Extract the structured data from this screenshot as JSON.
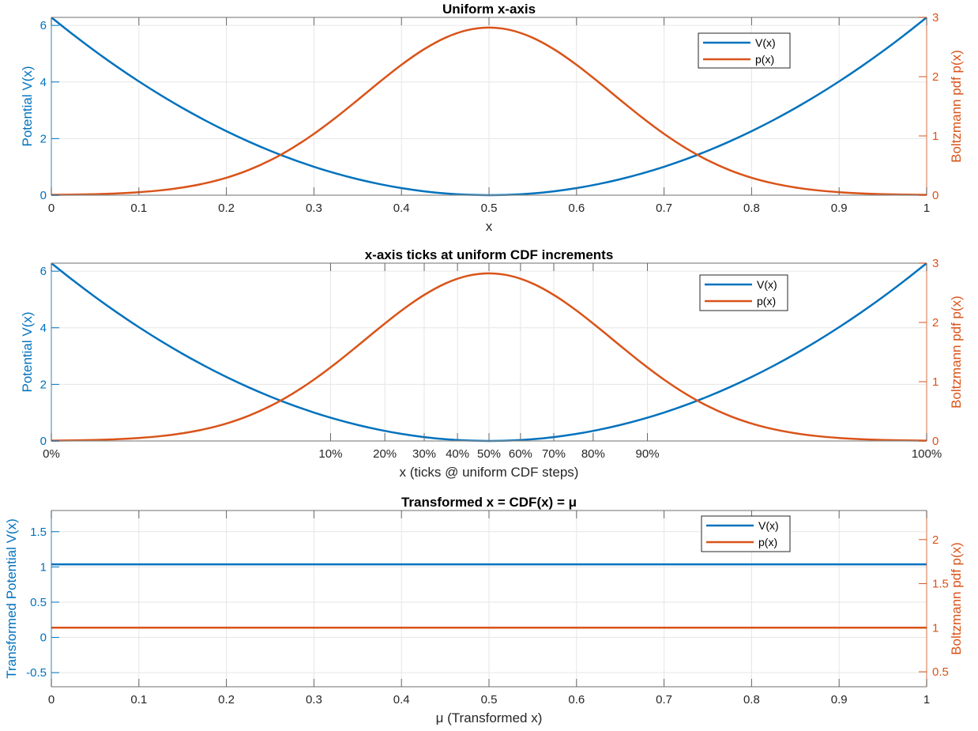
{
  "colors": {
    "v": "#0072BD",
    "p": "#D95319",
    "axis": "#262626",
    "grid": "#e6e6e6"
  },
  "chart_data": [
    {
      "type": "line",
      "title": "Uniform x-axis",
      "xlabel": "x",
      "ylabel_left": "Potential V(x)",
      "ylabel_right": "Boltzmann pdf p(x)",
      "xlim": [
        0,
        1
      ],
      "ylim_left": [
        0,
        6.283
      ],
      "ylim_right": [
        0,
        3
      ],
      "xticks": [
        0,
        0.1,
        0.2,
        0.3,
        0.4,
        0.5,
        0.6,
        0.7,
        0.8,
        0.9,
        1
      ],
      "xticklabels": [
        "0",
        "0.1",
        "0.2",
        "0.3",
        "0.4",
        "0.5",
        "0.6",
        "0.7",
        "0.8",
        "0.9",
        "1"
      ],
      "yticks_left": [
        0,
        2,
        4,
        6
      ],
      "yticklabels_left": [
        "0",
        "2",
        "4",
        "6"
      ],
      "yticks_right": [
        0,
        1,
        2,
        3
      ],
      "yticklabels_right": [
        "0",
        "1",
        "2",
        "3"
      ],
      "grid": true,
      "legend": {
        "position": "top-right",
        "entries": [
          "V(x)",
          "p(x)"
        ]
      },
      "x": [
        0,
        0.025,
        0.05,
        0.075,
        0.1,
        0.125,
        0.15,
        0.175,
        0.2,
        0.225,
        0.25,
        0.275,
        0.3,
        0.325,
        0.35,
        0.375,
        0.4,
        0.425,
        0.45,
        0.475,
        0.5,
        0.525,
        0.55,
        0.575,
        0.6,
        0.625,
        0.65,
        0.675,
        0.7,
        0.725,
        0.75,
        0.775,
        0.8,
        0.825,
        0.85,
        0.875,
        0.9,
        0.925,
        0.95,
        0.975,
        1
      ],
      "series": [
        {
          "name": "V(x)",
          "axis": "left",
          "values": [
            6.283,
            5.671,
            5.089,
            4.54,
            4.021,
            3.534,
            3.079,
            2.655,
            2.262,
            1.901,
            1.571,
            1.272,
            1.005,
            0.77,
            0.566,
            0.393,
            0.251,
            0.141,
            0.063,
            0.016,
            0,
            0.016,
            0.063,
            0.141,
            0.251,
            0.393,
            0.566,
            0.77,
            1.005,
            1.272,
            1.571,
            1.901,
            2.262,
            2.655,
            3.079,
            3.534,
            4.021,
            4.54,
            5.089,
            5.671,
            6.283
          ]
        },
        {
          "name": "p(x)",
          "axis": "right",
          "values": [
            0.0053,
            0.0097,
            0.0174,
            0.0302,
            0.0507,
            0.0825,
            0.1302,
            0.1988,
            0.2945,
            0.4226,
            0.588,
            0.7928,
            1.035,
            1.31,
            1.607,
            1.91,
            2.2,
            2.455,
            2.656,
            2.784,
            2.828,
            2.784,
            2.656,
            2.455,
            2.2,
            1.91,
            1.607,
            1.31,
            1.035,
            0.7928,
            0.588,
            0.4226,
            0.2945,
            0.1988,
            0.1302,
            0.0825,
            0.0507,
            0.0302,
            0.0174,
            0.0097,
            0.0053
          ]
        }
      ]
    },
    {
      "type": "line",
      "title": "x-axis ticks at uniform CDF increments",
      "xlabel": "x (ticks @ uniform CDF steps)",
      "ylabel_left": "Potential V(x)",
      "ylabel_right": "Boltzmann pdf p(x)",
      "xlim": [
        0,
        1
      ],
      "ylim_left": [
        0,
        6.283
      ],
      "ylim_right": [
        0,
        3
      ],
      "xticks": [
        0,
        0.319,
        0.381,
        0.426,
        0.464,
        0.5,
        0.536,
        0.574,
        0.619,
        0.681,
        1
      ],
      "xticklabels": [
        "0%",
        "10%",
        "20%",
        "30%",
        "40%",
        "50%",
        "60%",
        "70%",
        "80%",
        "90%",
        "100%"
      ],
      "yticks_left": [
        0,
        2,
        4,
        6
      ],
      "yticklabels_left": [
        "0",
        "2",
        "4",
        "6"
      ],
      "yticks_right": [
        0,
        1,
        2,
        3
      ],
      "yticklabels_right": [
        "0",
        "1",
        "2",
        "3"
      ],
      "grid": true,
      "legend": {
        "position": "top-right",
        "entries": [
          "V(x)",
          "p(x)"
        ]
      },
      "x": [
        0,
        0.025,
        0.05,
        0.075,
        0.1,
        0.125,
        0.15,
        0.175,
        0.2,
        0.225,
        0.25,
        0.275,
        0.3,
        0.325,
        0.35,
        0.375,
        0.4,
        0.425,
        0.45,
        0.475,
        0.5,
        0.525,
        0.55,
        0.575,
        0.6,
        0.625,
        0.65,
        0.675,
        0.7,
        0.725,
        0.75,
        0.775,
        0.8,
        0.825,
        0.85,
        0.875,
        0.9,
        0.925,
        0.95,
        0.975,
        1
      ],
      "series": [
        {
          "name": "V(x)",
          "axis": "left",
          "values": [
            6.283,
            5.671,
            5.089,
            4.54,
            4.021,
            3.534,
            3.079,
            2.655,
            2.262,
            1.901,
            1.571,
            1.272,
            1.005,
            0.77,
            0.566,
            0.393,
            0.251,
            0.141,
            0.063,
            0.016,
            0,
            0.016,
            0.063,
            0.141,
            0.251,
            0.393,
            0.566,
            0.77,
            1.005,
            1.272,
            1.571,
            1.901,
            2.262,
            2.655,
            3.079,
            3.534,
            4.021,
            4.54,
            5.089,
            5.671,
            6.283
          ]
        },
        {
          "name": "p(x)",
          "axis": "right",
          "values": [
            0.0053,
            0.0097,
            0.0174,
            0.0302,
            0.0507,
            0.0825,
            0.1302,
            0.1988,
            0.2945,
            0.4226,
            0.588,
            0.7928,
            1.035,
            1.31,
            1.607,
            1.91,
            2.2,
            2.455,
            2.656,
            2.784,
            2.828,
            2.784,
            2.656,
            2.455,
            2.2,
            1.91,
            1.607,
            1.31,
            1.035,
            0.7928,
            0.588,
            0.4226,
            0.2945,
            0.1988,
            0.1302,
            0.0825,
            0.0507,
            0.0302,
            0.0174,
            0.0097,
            0.0053
          ]
        }
      ]
    },
    {
      "type": "line",
      "title": "Transformed  x  =  CDF(x)  =  μ",
      "xlabel": "μ  (Transformed  x)",
      "ylabel_left": "Transformed Potential V(x)",
      "ylabel_right": "Boltzmann pdf p(x)",
      "xlim": [
        0,
        1
      ],
      "ylim_left": [
        -0.7,
        1.8
      ],
      "ylim_right": [
        0.33,
        2.33
      ],
      "xticks": [
        0,
        0.1,
        0.2,
        0.3,
        0.4,
        0.5,
        0.6,
        0.7,
        0.8,
        0.9,
        1
      ],
      "xticklabels": [
        "0",
        "0.1",
        "0.2",
        "0.3",
        "0.4",
        "0.5",
        "0.6",
        "0.7",
        "0.8",
        "0.9",
        "1"
      ],
      "yticks_left": [
        -0.5,
        0,
        0.5,
        1,
        1.5
      ],
      "yticklabels_left": [
        "-0.5",
        "0",
        "0.5",
        "1",
        "1.5"
      ],
      "yticks_right": [
        0.5,
        1,
        1.5,
        2
      ],
      "yticklabels_right": [
        "0.5",
        "1",
        "1.5",
        "2"
      ],
      "grid": true,
      "legend": {
        "position": "top-right",
        "entries": [
          "V(x)",
          "p(x)"
        ]
      },
      "x": [
        0,
        1
      ],
      "series": [
        {
          "name": "V(x)",
          "axis": "left",
          "values": [
            1.036,
            1.036
          ]
        },
        {
          "name": "p(x)",
          "axis": "right",
          "values": [
            1,
            1
          ]
        }
      ]
    }
  ]
}
